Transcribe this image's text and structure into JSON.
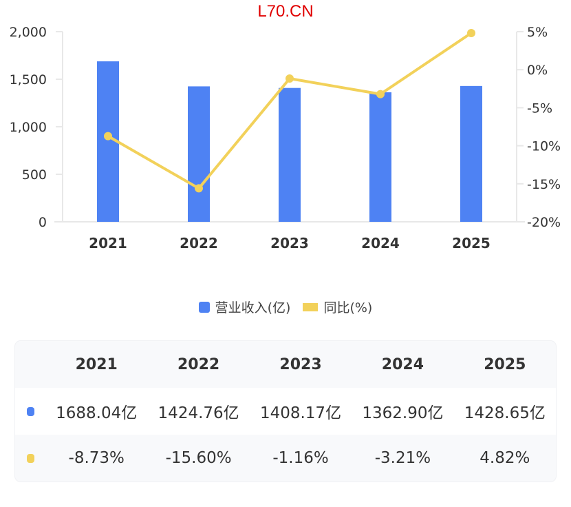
{
  "watermark": "L70.CN",
  "colors": {
    "bar": "#4e82f3",
    "line": "#f2d15a",
    "axis": "#e8e8e8",
    "text": "#333333",
    "watermark": "#e00000"
  },
  "legend": {
    "items": [
      {
        "label": "营业收入(亿)",
        "type": "bar"
      },
      {
        "label": "同比(%)",
        "type": "line"
      }
    ]
  },
  "table": {
    "header": [
      "2021",
      "2022",
      "2023",
      "2024",
      "2025"
    ],
    "rows": [
      {
        "series": "营业收入(亿)",
        "values": [
          "1688.04亿",
          "1424.76亿",
          "1408.17亿",
          "1362.90亿",
          "1428.65亿"
        ]
      },
      {
        "series": "同比(%)",
        "values": [
          "-8.73%",
          "-15.60%",
          "-1.16%",
          "-3.21%",
          "4.82%"
        ]
      }
    ]
  },
  "chart_data": {
    "type": "bar",
    "title": "",
    "categories": [
      "2021",
      "2022",
      "2023",
      "2024",
      "2025"
    ],
    "series": [
      {
        "name": "营业收入(亿)",
        "type": "bar",
        "axis": "left",
        "values": [
          1688.04,
          1424.76,
          1408.17,
          1362.9,
          1428.65
        ]
      },
      {
        "name": "同比(%)",
        "type": "line",
        "axis": "right",
        "values": [
          -8.73,
          -15.6,
          -1.16,
          -3.21,
          4.82
        ]
      }
    ],
    "left_axis": {
      "ticks": [
        "0",
        "500",
        "1,000",
        "1,500",
        "2,000"
      ],
      "range": [
        0,
        2000
      ]
    },
    "right_axis": {
      "ticks": [
        "-20%",
        "-15%",
        "-10%",
        "-5%",
        "0%",
        "5%"
      ],
      "range": [
        -20,
        5
      ]
    },
    "xlabel": "",
    "ylabel": "",
    "grid": false,
    "legend_position": "bottom"
  }
}
